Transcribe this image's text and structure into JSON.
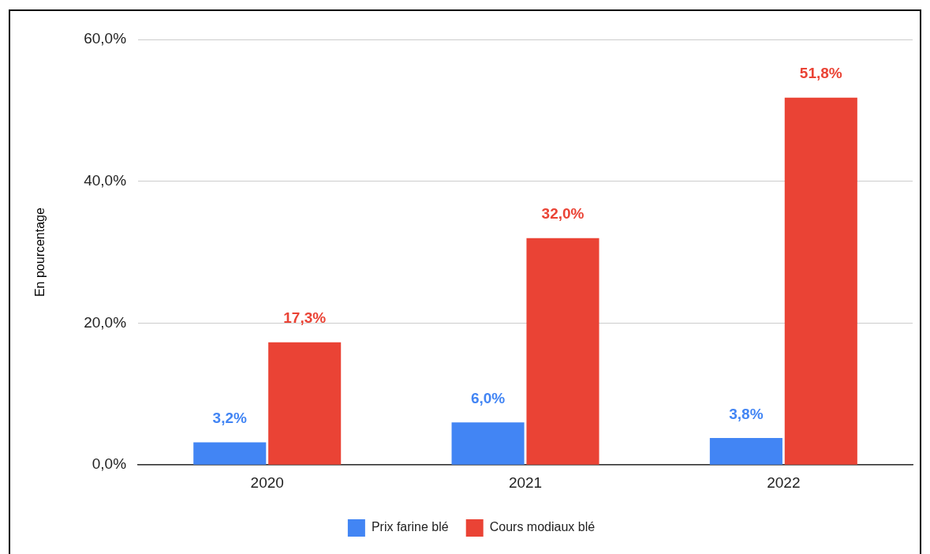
{
  "chart_data": {
    "type": "bar",
    "ylabel": "En pourcentage",
    "categories": [
      "2020",
      "2021",
      "2022"
    ],
    "series": [
      {
        "name": "Prix farine blé",
        "color": "#4285f4",
        "values": [
          3.2,
          6.0,
          3.8
        ],
        "value_labels": [
          "3,2%",
          "6,0%",
          "3,8%"
        ]
      },
      {
        "name": "Cours modiaux blé",
        "color": "#ea4335",
        "values": [
          17.3,
          32.0,
          51.8
        ],
        "value_labels": [
          "17,3%",
          "32,0%",
          "51,8%"
        ]
      }
    ],
    "ylim": [
      0,
      60
    ],
    "yticks": [
      {
        "value": 0,
        "label": "0,0%"
      },
      {
        "value": 20,
        "label": "20,0%"
      },
      {
        "value": 40,
        "label": "40,0%"
      },
      {
        "value": 60,
        "label": "60,0%"
      }
    ],
    "grid": "y",
    "legend": "bottom"
  }
}
